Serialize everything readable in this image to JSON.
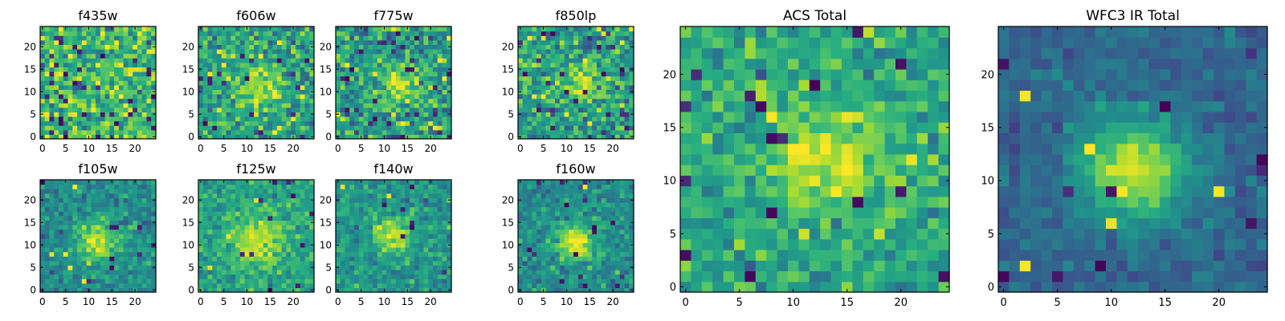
{
  "figure": {
    "colormap": "viridis",
    "colormap_stops": [
      "#440154",
      "#472d7b",
      "#3b528b",
      "#2c728e",
      "#21918c",
      "#28ae80",
      "#5ec962",
      "#addc30",
      "#fde725"
    ],
    "seed": 20240517
  },
  "chart_data": [
    {
      "type": "heatmap",
      "title": "f435w",
      "grid": [
        25,
        25
      ],
      "xlim": [
        0,
        24
      ],
      "ylim": [
        0,
        24
      ],
      "xticks": [
        0,
        5,
        10,
        15,
        20
      ],
      "yticks": [
        0,
        5,
        10,
        15,
        20
      ],
      "source_center": [
        12,
        12
      ],
      "source_width": 6,
      "source_amp": 0.05,
      "base": 0.66,
      "noise": 0.16,
      "outliers": 0.06
    },
    {
      "type": "heatmap",
      "title": "f606w",
      "grid": [
        25,
        25
      ],
      "xlim": [
        0,
        24
      ],
      "ylim": [
        0,
        24
      ],
      "xticks": [
        0,
        5,
        10,
        15,
        20
      ],
      "yticks": [
        0,
        5,
        10,
        15,
        20
      ],
      "source_center": [
        13,
        11
      ],
      "source_width": 3.5,
      "source_amp": 0.25,
      "base": 0.58,
      "noise": 0.15,
      "outliers": 0.05
    },
    {
      "type": "heatmap",
      "title": "f775w",
      "grid": [
        25,
        25
      ],
      "xlim": [
        0,
        24
      ],
      "ylim": [
        0,
        24
      ],
      "xticks": [
        0,
        5,
        10,
        15,
        20
      ],
      "yticks": [
        0,
        5,
        10,
        15,
        20
      ],
      "source_center": [
        13,
        12
      ],
      "source_width": 3.2,
      "source_amp": 0.3,
      "base": 0.56,
      "noise": 0.15,
      "outliers": 0.05
    },
    {
      "type": "heatmap",
      "title": "f850lp",
      "grid": [
        25,
        25
      ],
      "xlim": [
        0,
        24
      ],
      "ylim": [
        0,
        24
      ],
      "xticks": [
        0,
        5,
        10,
        15,
        20
      ],
      "yticks": [
        0,
        5,
        10,
        15,
        20
      ],
      "source_center": [
        13,
        12
      ],
      "source_width": 3.4,
      "source_amp": 0.3,
      "base": 0.56,
      "noise": 0.15,
      "outliers": 0.05
    },
    {
      "type": "heatmap",
      "title": "f105w",
      "grid": [
        25,
        25
      ],
      "xlim": [
        0,
        24
      ],
      "ylim": [
        0,
        24
      ],
      "xticks": [
        0,
        5,
        10,
        15,
        20
      ],
      "yticks": [
        0,
        5,
        10,
        15,
        20
      ],
      "source_center": [
        12,
        11
      ],
      "source_width": 3.2,
      "source_amp": 0.45,
      "base": 0.48,
      "noise": 0.09,
      "outliers": 0.03
    },
    {
      "type": "heatmap",
      "title": "f125w",
      "grid": [
        25,
        25
      ],
      "xlim": [
        0,
        24
      ],
      "ylim": [
        0,
        24
      ],
      "xticks": [
        0,
        5,
        10,
        15,
        20
      ],
      "yticks": [
        0,
        5,
        10,
        15,
        20
      ],
      "source_center": [
        12,
        11
      ],
      "source_width": 3.8,
      "source_amp": 0.35,
      "base": 0.58,
      "noise": 0.09,
      "outliers": 0.02
    },
    {
      "type": "heatmap",
      "title": "f140w",
      "grid": [
        25,
        25
      ],
      "xlim": [
        0,
        24
      ],
      "ylim": [
        0,
        24
      ],
      "xticks": [
        0,
        5,
        10,
        15,
        20
      ],
      "yticks": [
        0,
        5,
        10,
        15,
        20
      ],
      "source_center": [
        12,
        12
      ],
      "source_width": 2.8,
      "source_amp": 0.42,
      "base": 0.52,
      "noise": 0.09,
      "outliers": 0.02
    },
    {
      "type": "heatmap",
      "title": "f160w",
      "grid": [
        25,
        25
      ],
      "xlim": [
        0,
        24
      ],
      "ylim": [
        0,
        24
      ],
      "xticks": [
        0,
        5,
        10,
        15,
        20
      ],
      "yticks": [
        0,
        5,
        10,
        15,
        20
      ],
      "source_center": [
        12,
        11
      ],
      "source_width": 3.0,
      "source_amp": 0.45,
      "base": 0.48,
      "noise": 0.09,
      "outliers": 0.03
    },
    {
      "type": "heatmap",
      "title": "ACS Total",
      "grid": [
        25,
        25
      ],
      "xlim": [
        0,
        24
      ],
      "ylim": [
        0,
        24
      ],
      "xticks": [
        0,
        5,
        10,
        15,
        20
      ],
      "yticks": [
        0,
        5,
        10,
        15,
        20
      ],
      "source_center": [
        13,
        12
      ],
      "source_width": 3.6,
      "source_amp": 0.32,
      "base": 0.6,
      "noise": 0.11,
      "outliers": 0.03
    },
    {
      "type": "heatmap",
      "title": "WFC3 IR Total",
      "grid": [
        25,
        25
      ],
      "xlim": [
        0,
        24
      ],
      "ylim": [
        0,
        24
      ],
      "xticks": [
        0,
        5,
        10,
        15,
        20
      ],
      "yticks": [
        0,
        5,
        10,
        15,
        20
      ],
      "source_center": [
        12,
        11
      ],
      "source_width": 3.4,
      "source_amp": 0.6,
      "base": 0.33,
      "noise": 0.06,
      "outliers": 0.02
    }
  ]
}
